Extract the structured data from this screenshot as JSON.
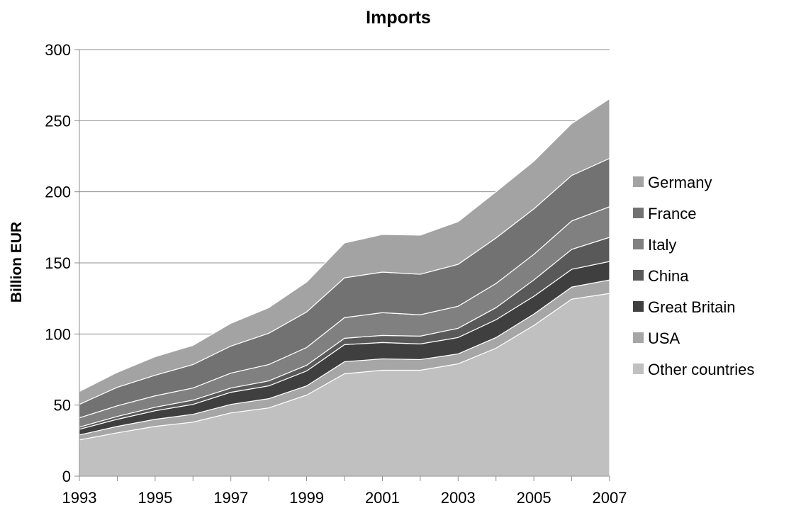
{
  "chart_data": {
    "type": "area",
    "stacked": true,
    "title": "Imports",
    "xlabel": "",
    "ylabel": "Billion EUR",
    "x": [
      1993,
      1994,
      1995,
      1996,
      1997,
      1998,
      1999,
      2000,
      2001,
      2002,
      2003,
      2004,
      2005,
      2006,
      2007
    ],
    "x_tick_labels": [
      "1993",
      "1995",
      "1997",
      "1999",
      "2001",
      "2003",
      "2005",
      "2007"
    ],
    "x_tick_values": [
      1993,
      1995,
      1997,
      1999,
      2001,
      2003,
      2005,
      2007
    ],
    "ylim": [
      0,
      300
    ],
    "y_ticks": [
      0,
      50,
      100,
      150,
      200,
      250,
      300
    ],
    "grid": true,
    "legend_position": "right",
    "series": [
      {
        "name": "Other countries",
        "color": "#c0c0c0",
        "values": [
          25.5,
          30.5,
          35,
          38,
          44.5,
          48,
          57,
          72,
          74.5,
          74.5,
          79,
          90,
          106,
          124.5,
          128.5
        ]
      },
      {
        "name": "USA",
        "color": "#a6a6a6",
        "values": [
          3.5,
          4.5,
          5,
          5.5,
          6,
          6.5,
          6.5,
          8.5,
          8,
          7.5,
          7,
          7.5,
          8,
          8.5,
          9.5
        ]
      },
      {
        "name": "Great Britain",
        "color": "#3f3f3f",
        "values": [
          4,
          5,
          6,
          7,
          8.5,
          9,
          10.5,
          12,
          11.5,
          11,
          11.5,
          12.5,
          12.5,
          12.5,
          13
        ]
      },
      {
        "name": "China",
        "color": "#595959",
        "values": [
          1.5,
          2,
          2.5,
          3,
          3,
          3.5,
          4,
          4.5,
          5,
          5.5,
          6.5,
          8.5,
          11.5,
          14,
          17
        ]
      },
      {
        "name": "Italy",
        "color": "#808080",
        "values": [
          6.5,
          7.5,
          8,
          8.5,
          10.5,
          11.5,
          12.5,
          14.5,
          16,
          15,
          15.5,
          17,
          18,
          20,
          21.5
        ]
      },
      {
        "name": "France",
        "color": "#727272",
        "values": [
          9.5,
          13,
          14.5,
          16.5,
          19,
          22,
          25,
          28,
          28.5,
          28.5,
          29.5,
          32,
          32,
          32,
          34
        ]
      },
      {
        "name": "Germany",
        "color": "#a3a3a3",
        "values": [
          9,
          10.5,
          13,
          13.5,
          16,
          18,
          21,
          24.5,
          26.5,
          27.5,
          30,
          32.5,
          33.5,
          36.5,
          42
        ]
      }
    ]
  }
}
